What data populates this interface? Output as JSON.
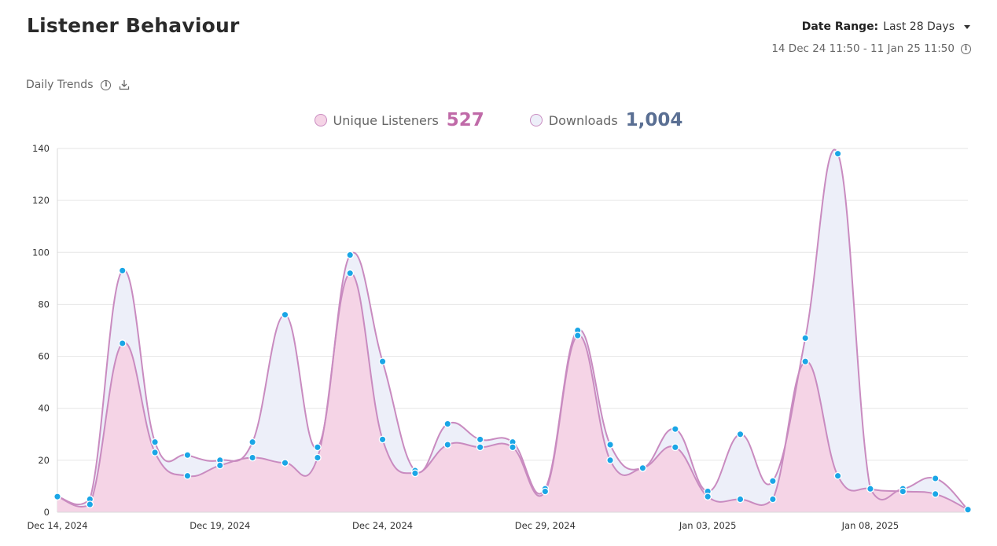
{
  "header": {
    "title": "Listener Behaviour",
    "date_range_label": "Date Range:",
    "date_range_value": "Last 28 Days",
    "date_span": "14 Dec 24 11:50 - 11 Jan 25 11:50"
  },
  "section": {
    "label": "Daily Trends"
  },
  "colors": {
    "listeners_line": "#c98bc0",
    "listeners_fill": "#f5d4e6",
    "downloads_line": "#c98bc0",
    "downloads_fill": "#edeff9",
    "point": "#1aa6e6",
    "listeners_total_color": "#c06aa8",
    "downloads_total_color": "#5a6f93"
  },
  "legend": [
    {
      "name": "Unique Listeners",
      "total": "527"
    },
    {
      "name": "Downloads",
      "total": "1,004"
    }
  ],
  "chart_data": {
    "type": "area",
    "y_ticks": [
      "0",
      "20",
      "40",
      "60",
      "80",
      "100",
      "120",
      "140"
    ],
    "ylim": [
      0,
      140
    ],
    "x_tick_labels": [
      {
        "index": 0,
        "label": "Dec 14, 2024"
      },
      {
        "index": 5,
        "label": "Dec 19, 2024"
      },
      {
        "index": 10,
        "label": "Dec 24, 2024"
      },
      {
        "index": 15,
        "label": "Dec 29, 2024"
      },
      {
        "index": 20,
        "label": "Jan 03, 2025"
      },
      {
        "index": 25,
        "label": "Jan 08, 2025"
      }
    ],
    "x_count": 29,
    "grid": true,
    "legend_position": "top-center",
    "series": [
      {
        "name": "Downloads",
        "values": [
          6,
          5,
          93,
          27,
          22,
          20,
          27,
          76,
          25,
          99,
          58,
          16,
          34,
          28,
          27,
          9,
          70,
          26,
          17,
          32,
          8,
          30,
          12,
          67,
          138,
          9,
          9,
          13,
          1
        ]
      },
      {
        "name": "Unique Listeners",
        "values": [
          6,
          3,
          65,
          23,
          14,
          18,
          21,
          19,
          21,
          92,
          28,
          15,
          26,
          25,
          25,
          8,
          68,
          20,
          17,
          25,
          6,
          5,
          5,
          58,
          14,
          9,
          8,
          7,
          1
        ]
      }
    ]
  }
}
